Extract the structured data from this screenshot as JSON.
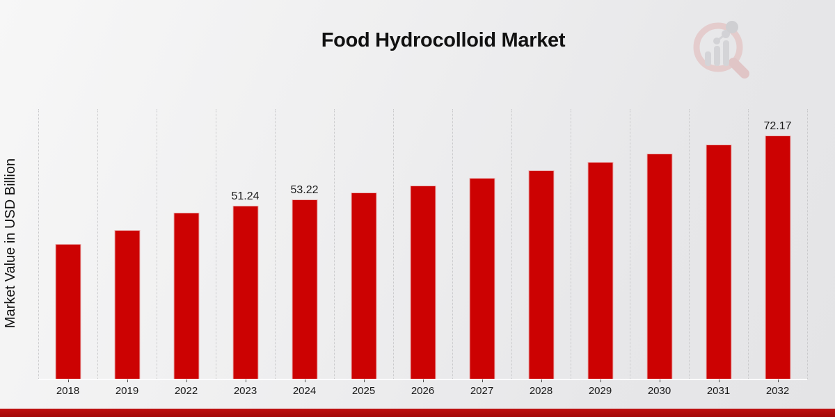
{
  "header": {
    "title": "Food Hydrocolloid Market"
  },
  "logo": {
    "name": "market-research-future-watermark"
  },
  "chart_data": {
    "type": "bar",
    "title": "Food Hydrocolloid Market",
    "xlabel": "",
    "ylabel": "Market Value in USD Billion",
    "ylim": [
      0,
      80
    ],
    "grid": "vertical-dotted-category-boundaries",
    "legend": "none",
    "categories": [
      "2018",
      "2019",
      "2022",
      "2023",
      "2024",
      "2025",
      "2026",
      "2027",
      "2028",
      "2029",
      "2030",
      "2031",
      "2032"
    ],
    "values": [
      40.0,
      44.2,
      49.35,
      51.24,
      53.22,
      55.28,
      57.42,
      59.64,
      61.95,
      64.35,
      66.84,
      69.43,
      72.17
    ],
    "bar_labels": [
      null,
      null,
      null,
      "51.24",
      "53.22",
      null,
      null,
      null,
      null,
      null,
      null,
      null,
      "72.17"
    ]
  },
  "colors": {
    "bar": "#cc0202",
    "footer_band_top": "#bf1111",
    "footer_band_bottom": "#a30909",
    "gridline": "#c7c7c9",
    "text": "#1a1a1a"
  }
}
